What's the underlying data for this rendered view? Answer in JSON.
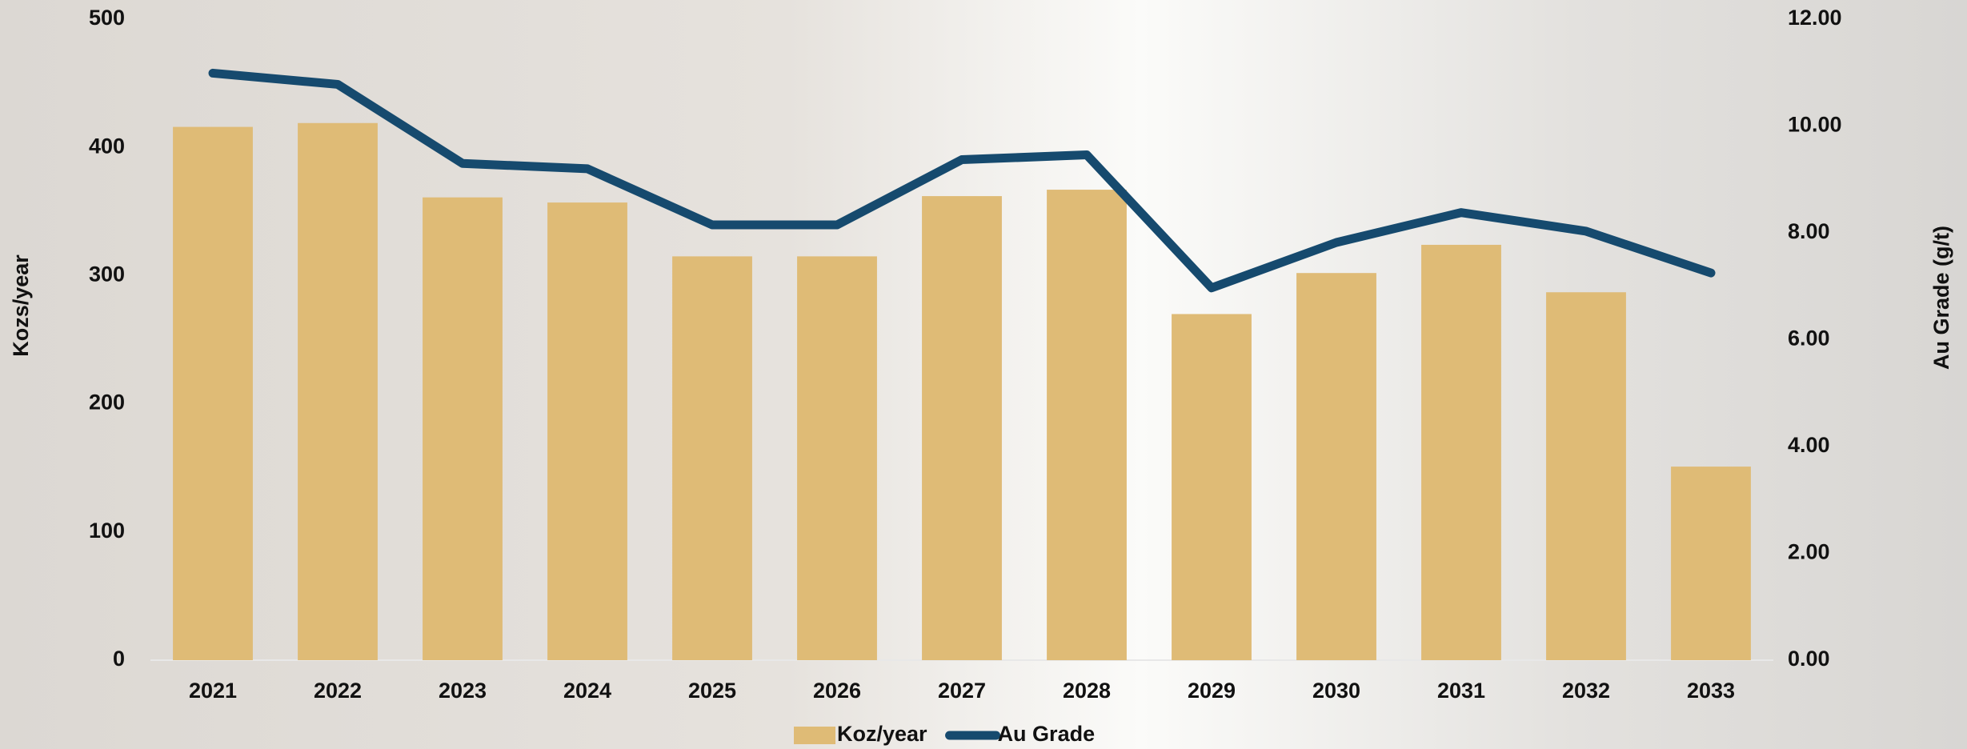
{
  "chart_data": {
    "type": "bar-line",
    "categories": [
      "2021",
      "2022",
      "2023",
      "2024",
      "2025",
      "2026",
      "2027",
      "2028",
      "2029",
      "2030",
      "2031",
      "2032",
      "2033"
    ],
    "series": [
      {
        "name": "Koz/year",
        "type": "bar",
        "color": "#dfbb76",
        "values": [
          416,
          419,
          361,
          357,
          315,
          315,
          362,
          367,
          270,
          302,
          324,
          287,
          151
        ]
      },
      {
        "name": "Au Grade",
        "type": "line",
        "axis": "y2",
        "color": "#164a6e",
        "values": [
          10.99,
          10.78,
          9.3,
          9.2,
          8.15,
          8.15,
          9.37,
          9.46,
          6.97,
          7.82,
          8.38,
          8.03,
          7.25
        ]
      }
    ],
    "y_label": "Kozs/year",
    "y2_label": "Au Grade (g/t)",
    "ylim": [
      0,
      500
    ],
    "yticks": [
      0,
      100,
      200,
      300,
      400,
      500
    ],
    "y2lim": [
      0,
      12
    ],
    "y2ticks": [
      {
        "value": 0,
        "label": "0.00"
      },
      {
        "value": 2,
        "label": "2.00"
      },
      {
        "value": 4,
        "label": "4.00"
      },
      {
        "value": 6,
        "label": "6.00"
      },
      {
        "value": 8,
        "label": "8.00"
      },
      {
        "value": 10,
        "label": "10.00"
      },
      {
        "value": 12,
        "label": "12.00"
      }
    ],
    "legend": "bottom"
  }
}
